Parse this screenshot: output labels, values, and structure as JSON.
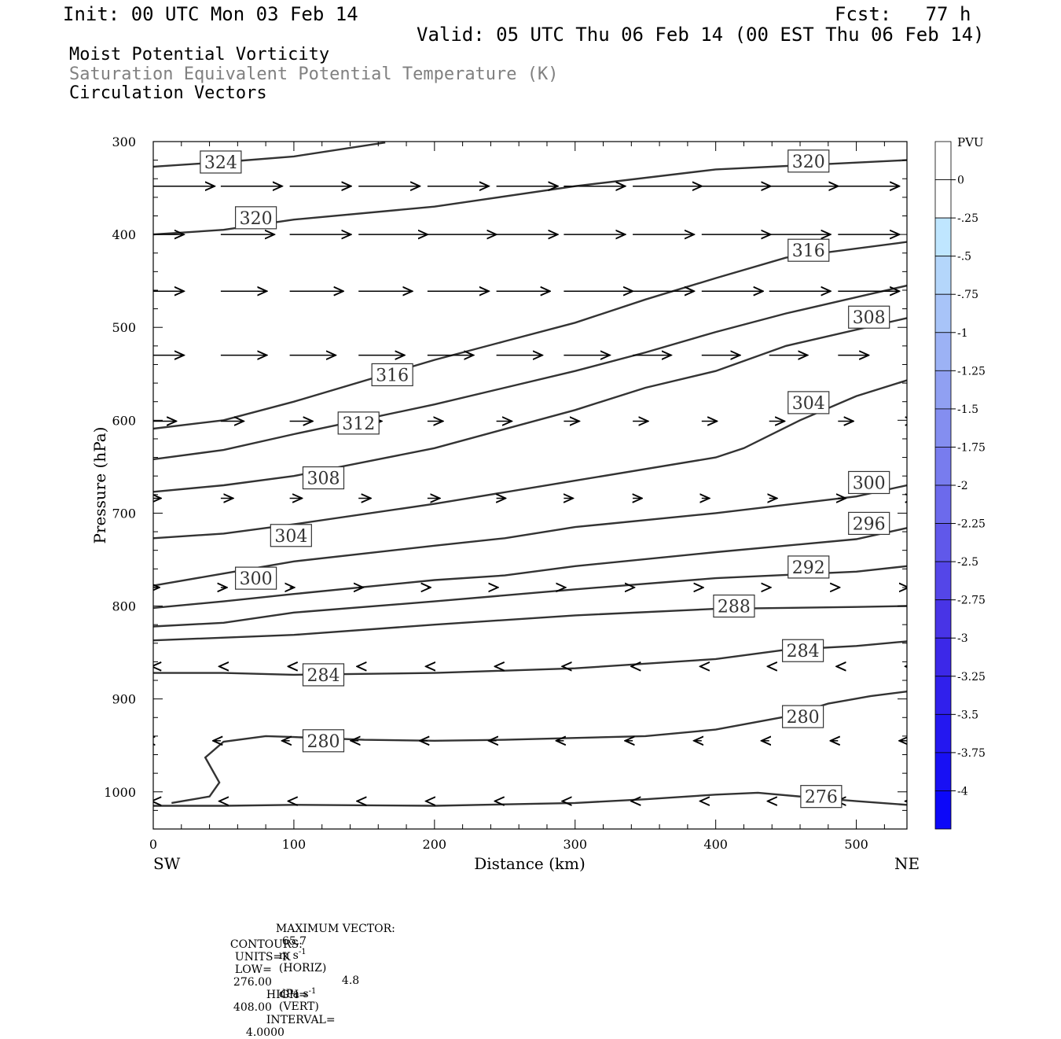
{
  "header": {
    "init": "Init: 00 UTC Mon 03 Feb 14",
    "fcst": "Fcst:   77 h",
    "valid": "Valid: 05 UTC Thu 06 Feb 14 (00 EST Thu 06 Feb 14)",
    "field1": "Moist Potential Vorticity",
    "field2": "Saturation Equivalent Potential Temperature (K)",
    "field3": "Circulation Vectors"
  },
  "footer": {
    "max_vector_label": "MAXIMUM VECTOR:",
    "max_horiz_value": "65.7",
    "horiz_units": "m s",
    "horiz_exp": "-1",
    "horiz_tag": "(HORIZ)",
    "max_vert_value": "4.8",
    "vert_units": "dPa s",
    "vert_exp": "-1",
    "vert_tag": "(VERT)",
    "contours_label": "CONTOURS:",
    "units": "UNITS=K",
    "low_label": "LOW=",
    "low": "276.00",
    "high_label": "HIGH=",
    "high": "408.00",
    "interval_label": "INTERVAL=",
    "interval": "4.0000"
  },
  "chart_data": {
    "type": "line",
    "xlabel": "Distance (km)",
    "ylabel": "Pressure (hPa)",
    "xlim": [
      0,
      536
    ],
    "ylim": [
      1040,
      300
    ],
    "x_ticks": [
      0,
      100,
      200,
      300,
      400,
      500
    ],
    "y_ticks": [
      300,
      400,
      500,
      600,
      700,
      800,
      900,
      1000
    ],
    "x_end_labels": {
      "left": "SW",
      "right": "NE"
    },
    "contour_label_values": [
      "324",
      "320",
      "320",
      "316",
      "316",
      "312",
      "308",
      "308",
      "304",
      "304",
      "300",
      "300",
      "296",
      "292",
      "288",
      "284",
      "284",
      "280",
      "280",
      "276"
    ],
    "contours": [
      {
        "value": 324,
        "points": [
          [
            0,
            327
          ],
          [
            50,
            322
          ],
          [
            100,
            316
          ],
          [
            165,
            301
          ]
        ]
      },
      {
        "value": 320,
        "points": [
          [
            0,
            400
          ],
          [
            50,
            395
          ],
          [
            100,
            384
          ],
          [
            200,
            370
          ],
          [
            300,
            348
          ],
          [
            400,
            330
          ],
          [
            536,
            320
          ]
        ]
      },
      {
        "value": 316,
        "points": [
          [
            0,
            609
          ],
          [
            50,
            600
          ],
          [
            100,
            580
          ],
          [
            200,
            535
          ],
          [
            250,
            515
          ],
          [
            300,
            495
          ],
          [
            350,
            470
          ],
          [
            400,
            447
          ],
          [
            450,
            425
          ],
          [
            536,
            408
          ]
        ]
      },
      {
        "value": 312,
        "points": [
          [
            0,
            642
          ],
          [
            50,
            632
          ],
          [
            100,
            615
          ],
          [
            200,
            583
          ],
          [
            300,
            547
          ],
          [
            350,
            527
          ],
          [
            400,
            505
          ],
          [
            450,
            485
          ],
          [
            536,
            455
          ]
        ]
      },
      {
        "value": 308,
        "points": [
          [
            0,
            677
          ],
          [
            50,
            670
          ],
          [
            100,
            660
          ],
          [
            200,
            630
          ],
          [
            300,
            589
          ],
          [
            350,
            565
          ],
          [
            400,
            547
          ],
          [
            450,
            520
          ],
          [
            536,
            490
          ]
        ]
      },
      {
        "value": 304,
        "points": [
          [
            0,
            727
          ],
          [
            50,
            722
          ],
          [
            100,
            712
          ],
          [
            200,
            690
          ],
          [
            300,
            665
          ],
          [
            400,
            640
          ],
          [
            420,
            630
          ],
          [
            460,
            600
          ],
          [
            500,
            574
          ],
          [
            536,
            557
          ]
        ]
      },
      {
        "value": 300,
        "points": [
          [
            0,
            778
          ],
          [
            50,
            765
          ],
          [
            100,
            752
          ],
          [
            200,
            735
          ],
          [
            250,
            727
          ],
          [
            300,
            715
          ],
          [
            400,
            700
          ],
          [
            500,
            682
          ],
          [
            536,
            670
          ]
        ]
      },
      {
        "value": 296,
        "points": [
          [
            0,
            802
          ],
          [
            50,
            795
          ],
          [
            100,
            787
          ],
          [
            200,
            772
          ],
          [
            250,
            767
          ],
          [
            300,
            757
          ],
          [
            400,
            742
          ],
          [
            500,
            728
          ],
          [
            536,
            716
          ]
        ]
      },
      {
        "value": 292,
        "points": [
          [
            0,
            822
          ],
          [
            50,
            818
          ],
          [
            100,
            807
          ],
          [
            200,
            795
          ],
          [
            300,
            782
          ],
          [
            400,
            770
          ],
          [
            500,
            763
          ],
          [
            536,
            757
          ]
        ]
      },
      {
        "value": 288,
        "points": [
          [
            0,
            837
          ],
          [
            100,
            831
          ],
          [
            200,
            820
          ],
          [
            300,
            810
          ],
          [
            400,
            803
          ],
          [
            500,
            801
          ],
          [
            536,
            800
          ]
        ]
      },
      {
        "value": 284,
        "points": [
          [
            0,
            872
          ],
          [
            50,
            872
          ],
          [
            100,
            874
          ],
          [
            200,
            872
          ],
          [
            300,
            867
          ],
          [
            400,
            857
          ],
          [
            450,
            847
          ],
          [
            500,
            843
          ],
          [
            536,
            838
          ]
        ]
      },
      {
        "value": 280,
        "points": [
          [
            13,
            1012
          ],
          [
            40,
            1005
          ],
          [
            47,
            990
          ],
          [
            37,
            963
          ],
          [
            50,
            946
          ],
          [
            80,
            940
          ],
          [
            100,
            941
          ],
          [
            150,
            944
          ],
          [
            200,
            945
          ],
          [
            250,
            944
          ],
          [
            350,
            940
          ],
          [
            400,
            933
          ],
          [
            450,
            919
          ],
          [
            480,
            905
          ],
          [
            510,
            897
          ],
          [
            536,
            892
          ]
        ]
      },
      {
        "value": 276,
        "points": [
          [
            0,
            1015
          ],
          [
            50,
            1015
          ],
          [
            100,
            1014
          ],
          [
            200,
            1015
          ],
          [
            300,
            1012
          ],
          [
            350,
            1008
          ],
          [
            400,
            1003
          ],
          [
            430,
            1001
          ],
          [
            460,
            1005
          ],
          [
            500,
            1010
          ],
          [
            536,
            1014
          ]
        ]
      }
    ],
    "vector_rows": [
      {
        "p": 348,
        "u": [
          40,
          40,
          40,
          40,
          40,
          40,
          40,
          45,
          45,
          45,
          40,
          45
        ],
        "w": [
          0,
          0,
          0,
          0,
          0,
          0,
          0,
          0,
          0,
          0,
          0,
          0
        ]
      },
      {
        "p": 400,
        "u": [
          20,
          35,
          40,
          45,
          45,
          40,
          40,
          40,
          45,
          40,
          40,
          40
        ]
      },
      {
        "p": 461,
        "u": [
          20,
          30,
          35,
          35,
          40,
          35,
          45,
          40,
          40,
          40,
          40,
          35
        ]
      },
      {
        "p": 530,
        "u": [
          20,
          30,
          30,
          30,
          30,
          30,
          30,
          25,
          25,
          25,
          20,
          10
        ]
      },
      {
        "p": 601,
        "u": [
          15,
          15,
          15,
          15,
          10,
          10,
          10,
          10,
          10,
          10,
          10,
          5
        ]
      },
      {
        "p": 684,
        "u": [
          5,
          8,
          8,
          8,
          8,
          6,
          6,
          6,
          5,
          5,
          5,
          5
        ]
      },
      {
        "p": 780,
        "u": [
          4,
          4,
          3,
          3,
          2,
          1,
          1,
          1,
          1,
          1,
          1,
          1
        ]
      },
      {
        "p": 865,
        "u": [
          -1,
          -1,
          -1,
          -1,
          -1,
          -1,
          -1,
          -1,
          -1,
          -1,
          -1,
          -1
        ]
      },
      {
        "p": 945,
        "u": [
          -5,
          -5,
          -5,
          -5,
          -5,
          -5,
          -5,
          -5,
          -5,
          -5,
          -5,
          -5
        ]
      },
      {
        "p": 1010,
        "u": [
          -1,
          -1,
          -1,
          -1,
          -1,
          -1,
          -1,
          -1,
          -1,
          -1,
          -1,
          -1
        ]
      }
    ],
    "colorbar": {
      "title": "PVU",
      "labels": [
        "0",
        "-.25",
        "-.5",
        "-.75",
        "-1",
        "-1.25",
        "-1.5",
        "-1.75",
        "-2",
        "-2.25",
        "-2.5",
        "-2.75",
        "-3",
        "-3.25",
        "-3.5",
        "-3.75",
        "-4"
      ],
      "colors": [
        "#ffffff",
        "#ffffff",
        "#bfe6ff",
        "#b4d6fb",
        "#a8c4f8",
        "#9cb2f5",
        "#90a0f2",
        "#848ef0",
        "#787cee",
        "#6c6aec",
        "#6058ea",
        "#5446e8",
        "#4834e6",
        "#3c28e8",
        "#3020ec",
        "#2418f0",
        "#1810f4",
        "#0c08f8"
      ]
    }
  }
}
